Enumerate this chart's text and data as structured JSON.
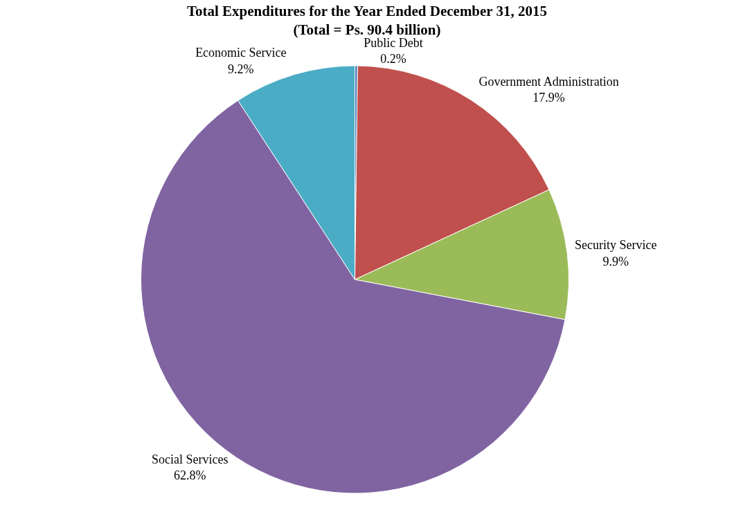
{
  "chart_data": {
    "type": "pie",
    "title": "Total Expenditures for the Year Ended December 31, 2015\n(Total = Ps. 90.4 billion)",
    "categories": [
      "Public Debt",
      "Government Administration",
      "Security Service",
      "Social Services",
      "Economic Service"
    ],
    "values": [
      0.2,
      17.9,
      9.9,
      62.8,
      9.2
    ],
    "value_labels": [
      "0.2%",
      "17.9%",
      "9.9%",
      "62.8%",
      "9.2%"
    ],
    "colors": [
      "#4f81bd",
      "#c0504d",
      "#9bbb59",
      "#8064a2",
      "#4bacc6"
    ],
    "legend": false
  }
}
